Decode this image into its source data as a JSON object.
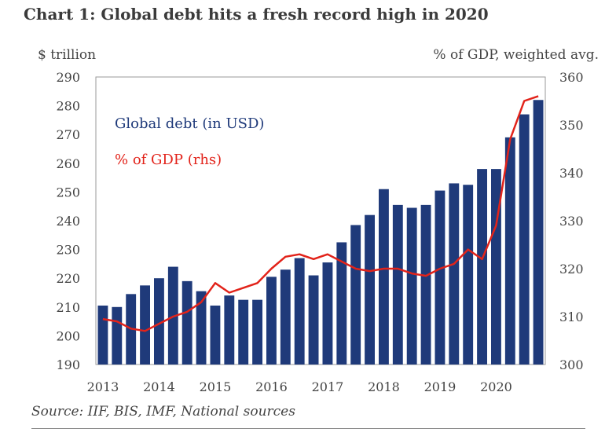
{
  "title": "Chart 1: Global debt hits a fresh record high in 2020",
  "source": "Source: IIF, BIS, IMF, National sources",
  "chart_data": {
    "type": "bar",
    "left_axis_label": "$ trillion",
    "right_axis_label": "% of GDP, weighted avg.",
    "ylim": [
      190,
      290
    ],
    "y2lim": [
      300,
      360
    ],
    "y_ticks": [
      "190",
      "200",
      "210",
      "220",
      "230",
      "240",
      "250",
      "260",
      "270",
      "280",
      "290"
    ],
    "y2_ticks": [
      "300",
      "310",
      "320",
      "330",
      "340",
      "350",
      "360"
    ],
    "x_ticks": [
      "2013",
      "2014",
      "2015",
      "2016",
      "2017",
      "2018",
      "2019",
      "2020"
    ],
    "quarters": [
      "2013Q1",
      "2013Q2",
      "2013Q3",
      "2013Q4",
      "2014Q1",
      "2014Q2",
      "2014Q3",
      "2014Q4",
      "2015Q1",
      "2015Q2",
      "2015Q3",
      "2015Q4",
      "2016Q1",
      "2016Q2",
      "2016Q3",
      "2016Q4",
      "2017Q1",
      "2017Q2",
      "2017Q3",
      "2017Q4",
      "2018Q1",
      "2018Q2",
      "2018Q3",
      "2018Q4",
      "2019Q1",
      "2019Q2",
      "2019Q3",
      "2019Q4",
      "2020Q1",
      "2020Q2",
      "2020Q3",
      "2020Q4"
    ],
    "series": [
      {
        "name": "Global debt (in USD)",
        "kind": "bar",
        "axis": "left",
        "color": "#1f3a7a",
        "values": [
          210.5,
          210,
          214.5,
          217.5,
          220,
          224,
          219,
          215.5,
          210.5,
          214,
          212.5,
          212.5,
          220.5,
          223,
          227,
          221,
          225.5,
          232.5,
          238.5,
          242,
          251,
          245.5,
          244.5,
          245.5,
          250.5,
          253,
          252.5,
          258,
          258,
          269,
          277,
          282
        ]
      },
      {
        "name": "% of GDP (rhs)",
        "kind": "line",
        "axis": "right",
        "color": "#e2231a",
        "values": [
          309.5,
          309,
          307.5,
          307,
          308.5,
          310,
          311,
          313,
          317,
          315,
          316,
          317,
          320,
          322.5,
          323,
          322,
          323,
          321.5,
          320,
          319.5,
          320,
          320,
          319,
          318.5,
          320,
          321,
          324,
          322,
          329,
          347,
          355,
          356
        ]
      }
    ]
  }
}
